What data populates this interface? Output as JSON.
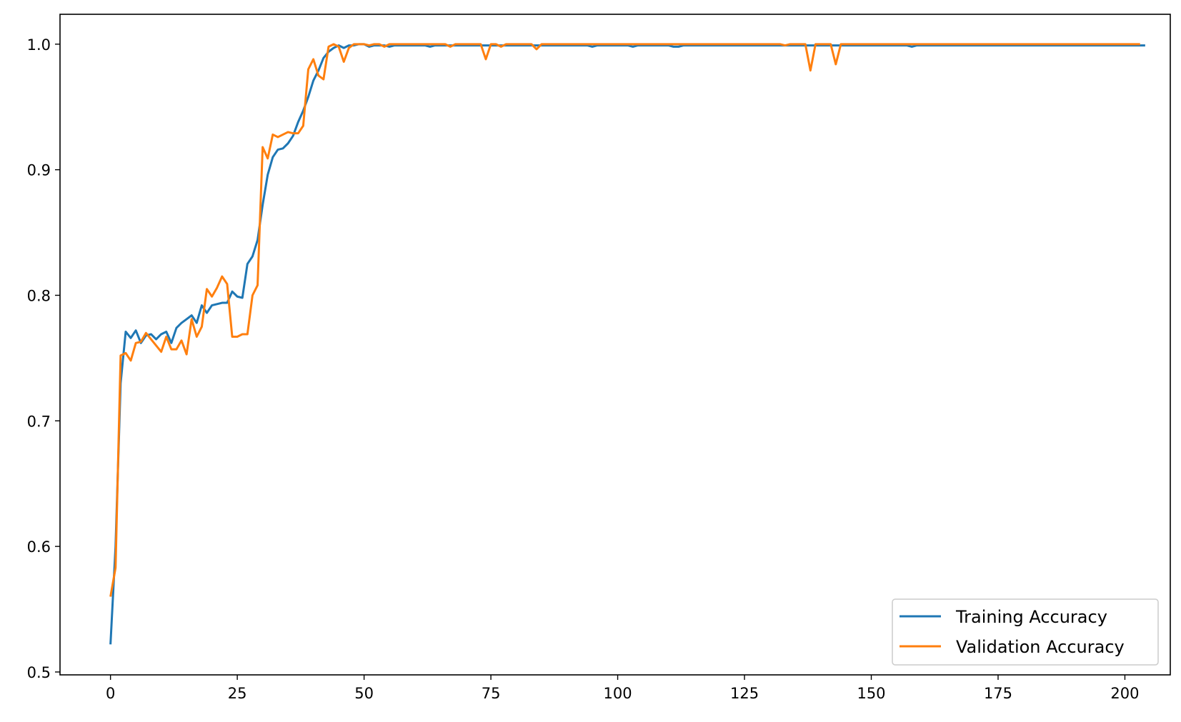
{
  "chart_data": {
    "type": "line",
    "title": "",
    "xlabel": "",
    "ylabel": "",
    "xlim": [
      -9.95,
      208.95
    ],
    "ylim": [
      0.4977,
      1.0238
    ],
    "xticks": [
      0,
      25,
      50,
      75,
      100,
      125,
      150,
      175,
      200
    ],
    "yticks": [
      0.5,
      0.6,
      0.7,
      0.8,
      0.9,
      1.0
    ],
    "xtick_labels": [
      "0",
      "25",
      "50",
      "75",
      "100",
      "125",
      "150",
      "175",
      "200"
    ],
    "ytick_labels": [
      "0.5",
      "0.6",
      "0.7",
      "0.8",
      "0.9",
      "1.0"
    ],
    "grid": false,
    "legend_position": "bottom-right",
    "series": [
      {
        "name": "Training Accuracy",
        "color": "#1f77b4",
        "x_start": 0,
        "values": [
          0.522,
          0.6,
          0.73,
          0.771,
          0.766,
          0.772,
          0.762,
          0.768,
          0.769,
          0.765,
          0.769,
          0.771,
          0.762,
          0.774,
          0.778,
          0.781,
          0.784,
          0.778,
          0.792,
          0.786,
          0.792,
          0.793,
          0.794,
          0.794,
          0.803,
          0.799,
          0.798,
          0.825,
          0.831,
          0.844,
          0.872,
          0.896,
          0.91,
          0.916,
          0.917,
          0.921,
          0.927,
          0.938,
          0.947,
          0.958,
          0.971,
          0.979,
          0.989,
          0.994,
          0.997,
          0.999,
          0.997,
          0.999,
          0.999,
          1.0,
          1.0,
          0.998,
          0.999,
          0.999,
          0.999,
          0.998,
          0.999,
          0.999,
          0.999,
          0.999,
          0.999,
          0.999,
          0.999,
          0.998,
          0.999,
          0.999,
          0.999,
          0.999,
          0.999,
          0.999,
          0.999,
          0.999,
          0.999,
          0.999,
          0.999,
          0.999,
          0.999,
          0.999,
          0.999,
          0.999,
          0.999,
          0.999,
          0.999,
          0.999,
          0.999,
          0.999,
          0.999,
          0.999,
          0.999,
          0.999,
          0.999,
          0.999,
          0.999,
          0.999,
          0.999,
          0.998,
          0.999,
          0.999,
          0.999,
          0.999,
          0.999,
          0.999,
          0.999,
          0.998,
          0.999,
          0.999,
          0.999,
          0.999,
          0.999,
          0.999,
          0.999,
          0.998,
          0.998,
          0.999,
          0.999,
          0.999,
          0.999,
          0.999,
          0.999,
          0.999,
          0.999,
          0.999,
          0.999,
          0.999,
          0.999,
          0.999,
          0.999,
          0.999,
          0.999,
          0.999,
          0.999,
          0.999,
          0.999,
          0.999,
          0.999,
          0.999,
          0.999,
          0.999,
          0.999,
          0.999,
          0.999,
          0.999,
          0.999,
          0.999,
          0.999,
          0.999,
          0.999,
          0.999,
          0.999,
          0.999,
          0.999,
          0.999,
          0.999,
          0.999,
          0.999,
          0.999,
          0.999,
          0.999,
          0.998,
          0.999,
          0.999,
          0.999,
          0.999,
          0.999,
          0.999,
          0.999,
          0.999,
          0.999,
          0.999,
          0.999,
          0.999,
          0.999,
          0.999,
          0.999,
          0.999,
          0.999,
          0.999,
          0.999,
          0.999,
          0.999,
          0.999,
          0.999,
          0.999,
          0.999,
          0.999,
          0.999,
          0.999,
          0.999,
          0.999,
          0.999,
          0.999,
          0.999,
          0.999,
          0.999,
          0.999,
          0.999,
          0.999,
          0.999,
          0.999,
          0.999,
          0.999,
          0.999,
          0.999,
          0.999,
          0.999
        ]
      },
      {
        "name": "Validation Accuracy",
        "color": "#ff7f0e",
        "x_start": 0,
        "values": [
          0.56,
          0.583,
          0.752,
          0.754,
          0.748,
          0.762,
          0.763,
          0.77,
          0.765,
          0.76,
          0.755,
          0.767,
          0.757,
          0.757,
          0.764,
          0.753,
          0.781,
          0.767,
          0.775,
          0.805,
          0.799,
          0.806,
          0.815,
          0.809,
          0.767,
          0.767,
          0.769,
          0.769,
          0.8,
          0.808,
          0.918,
          0.909,
          0.928,
          0.926,
          0.928,
          0.93,
          0.929,
          0.929,
          0.935,
          0.98,
          0.988,
          0.975,
          0.972,
          0.998,
          1.0,
          0.998,
          0.986,
          0.997,
          1.0,
          1.0,
          1.0,
          0.999,
          1.0,
          1.0,
          0.998,
          1.0,
          1.0,
          1.0,
          1.0,
          1.0,
          1.0,
          1.0,
          1.0,
          1.0,
          1.0,
          1.0,
          1.0,
          0.998,
          1.0,
          1.0,
          1.0,
          1.0,
          1.0,
          1.0,
          0.988,
          1.0,
          1.0,
          0.998,
          1.0,
          1.0,
          1.0,
          1.0,
          1.0,
          1.0,
          0.996,
          1.0,
          1.0,
          1.0,
          1.0,
          1.0,
          1.0,
          1.0,
          1.0,
          1.0,
          1.0,
          1.0,
          1.0,
          1.0,
          1.0,
          1.0,
          1.0,
          1.0,
          1.0,
          1.0,
          1.0,
          1.0,
          1.0,
          1.0,
          1.0,
          1.0,
          1.0,
          1.0,
          1.0,
          1.0,
          1.0,
          1.0,
          1.0,
          1.0,
          1.0,
          1.0,
          1.0,
          1.0,
          1.0,
          1.0,
          1.0,
          1.0,
          1.0,
          1.0,
          1.0,
          1.0,
          1.0,
          1.0,
          1.0,
          0.999,
          1.0,
          1.0,
          1.0,
          1.0,
          0.979,
          1.0,
          1.0,
          1.0,
          1.0,
          0.984,
          1.0,
          1.0,
          1.0,
          1.0,
          1.0,
          1.0,
          1.0,
          1.0,
          1.0,
          1.0,
          1.0,
          1.0,
          1.0,
          1.0,
          1.0,
          1.0,
          1.0,
          1.0,
          1.0,
          1.0,
          1.0,
          1.0,
          1.0,
          1.0,
          1.0,
          1.0,
          1.0,
          1.0,
          1.0,
          1.0,
          1.0,
          1.0,
          1.0,
          1.0,
          1.0,
          1.0,
          1.0,
          1.0,
          1.0,
          1.0,
          1.0,
          1.0,
          1.0,
          1.0,
          1.0,
          1.0,
          1.0,
          1.0,
          1.0,
          1.0,
          1.0,
          1.0,
          1.0,
          1.0,
          1.0,
          1.0,
          1.0,
          1.0,
          1.0,
          1.0
        ]
      }
    ]
  }
}
